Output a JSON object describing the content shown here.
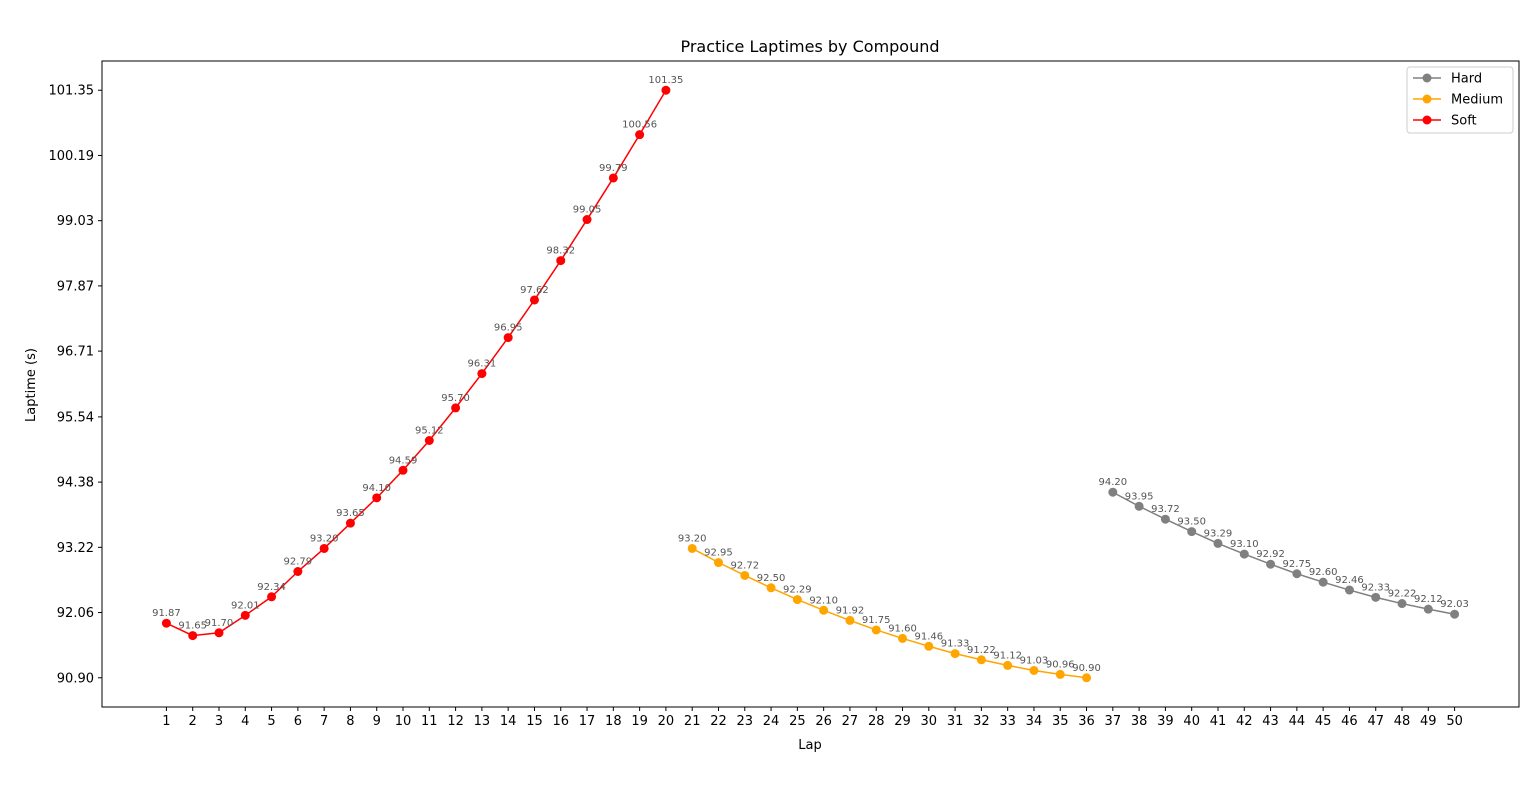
{
  "chart_data": {
    "type": "line",
    "title": "Practice Laptimes by Compound",
    "xlabel": "Lap",
    "ylabel": "Laptime (s)",
    "x_ticks": [
      1,
      2,
      3,
      4,
      5,
      6,
      7,
      8,
      9,
      10,
      11,
      12,
      13,
      14,
      15,
      16,
      17,
      18,
      19,
      20,
      21,
      22,
      23,
      24,
      25,
      26,
      27,
      28,
      29,
      30,
      31,
      32,
      33,
      34,
      35,
      36,
      37,
      38,
      39,
      40,
      41,
      42,
      43,
      44,
      45,
      46,
      47,
      48,
      49,
      50
    ],
    "y_ticks": [
      90.9,
      92.06,
      93.22,
      94.38,
      95.54,
      96.71,
      97.87,
      99.03,
      100.19,
      101.35
    ],
    "y_tick_labels": [
      "90.90",
      "92.06",
      "93.22",
      "94.38",
      "95.54",
      "96.71",
      "97.87",
      "99.03",
      "100.19",
      "101.35"
    ],
    "xlim": [
      -1.45,
      52.45
    ],
    "ylim": [
      90.38,
      101.87
    ],
    "grid": false,
    "legend_position": "top-right",
    "legend_order": [
      "Hard",
      "Medium",
      "Soft"
    ],
    "series": [
      {
        "name": "Soft",
        "color": "#ff0000",
        "x": [
          1,
          2,
          3,
          4,
          5,
          6,
          7,
          8,
          9,
          10,
          11,
          12,
          13,
          14,
          15,
          16,
          17,
          18,
          19,
          20
        ],
        "values": [
          91.87,
          91.65,
          91.7,
          92.01,
          92.34,
          92.79,
          93.2,
          93.65,
          94.1,
          94.59,
          95.12,
          95.7,
          96.31,
          96.95,
          97.62,
          98.32,
          99.05,
          99.79,
          100.56,
          101.35
        ],
        "labels": [
          "91.87",
          "91.65",
          "91.70",
          "92.01",
          "92.34",
          "92.79",
          "93.20",
          "93.65",
          "94.10",
          "94.59",
          "95.12",
          "95.70",
          "96.31",
          "96.95",
          "97.62",
          "98.32",
          "99.05",
          "99.79",
          "100.56",
          "101.35"
        ]
      },
      {
        "name": "Medium",
        "color": "#ffa500",
        "x": [
          21,
          22,
          23,
          24,
          25,
          26,
          27,
          28,
          29,
          30,
          31,
          32,
          33,
          34,
          35,
          36
        ],
        "values": [
          93.2,
          92.95,
          92.72,
          92.5,
          92.29,
          92.1,
          91.92,
          91.75,
          91.6,
          91.46,
          91.33,
          91.22,
          91.12,
          91.03,
          90.96,
          90.9
        ],
        "labels": [
          "93.20",
          "92.95",
          "92.72",
          "92.50",
          "92.29",
          "92.10",
          "91.92",
          "91.75",
          "91.60",
          "91.46",
          "91.33",
          "91.22",
          "91.12",
          "91.03",
          "90.96",
          "90.90"
        ]
      },
      {
        "name": "Hard",
        "color": "#808080",
        "x": [
          37,
          38,
          39,
          40,
          41,
          42,
          43,
          44,
          45,
          46,
          47,
          48,
          49,
          50
        ],
        "values": [
          94.2,
          93.95,
          93.72,
          93.5,
          93.29,
          93.1,
          92.92,
          92.75,
          92.6,
          92.46,
          92.33,
          92.22,
          92.12,
          92.03
        ],
        "labels": [
          "94.20",
          "93.95",
          "93.72",
          "93.50",
          "93.29",
          "93.10",
          "92.92",
          "92.75",
          "92.60",
          "92.46",
          "92.33",
          "92.22",
          "92.12",
          "92.03"
        ]
      }
    ]
  }
}
